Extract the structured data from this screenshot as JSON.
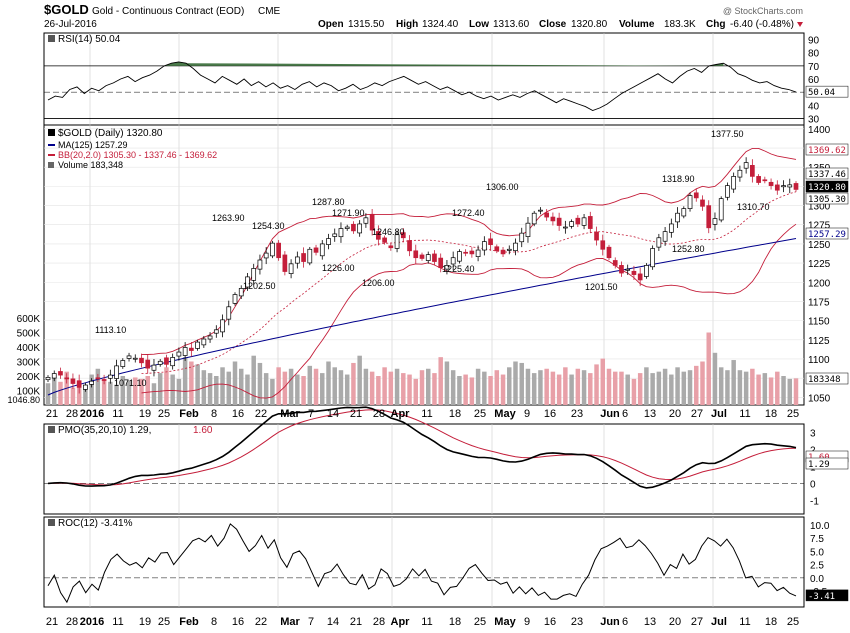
{
  "header": {
    "symbol": "$GOLD",
    "name": "Gold - Continuous Contract (EOD)",
    "exchange": "CME",
    "date": "26-Jul-2016",
    "copyright": "@ StockCharts.com",
    "quote": {
      "open_label": "Open",
      "open": "1315.50",
      "high_label": "High",
      "high": "1324.40",
      "low_label": "Low",
      "low": "1313.60",
      "close_label": "Close",
      "close": "1320.80",
      "volume_label": "Volume",
      "volume": "183.3K",
      "chg_label": "Chg",
      "chg": "-6.40 (-0.48%)"
    }
  },
  "colors": {
    "price": "#000000",
    "ma": "#00008b",
    "bb": "#c41e3a",
    "volume_up": "#aaaaaa",
    "volume_down": "#e8a0a8",
    "candle_down": "#c41e3a",
    "rsi_fill": "#4a7a4a"
  },
  "legends": {
    "rsi": "RSI(14) 50.04",
    "price_title": "$GOLD (Daily) 1320.80",
    "ma": "MA(125) 1257.29",
    "bb": "BB(20,2.0) 1305.30 - 1337.46 - 1369.62",
    "volume": "Volume 183,348",
    "pmo_prefix": "PMO(35,20,10) 1.29,",
    "pmo_signal": "1.60",
    "roc": "ROC(12) -3.41%"
  },
  "x_axis": {
    "labels": [
      {
        "text": "21",
        "bold": false
      },
      {
        "text": "28",
        "bold": false
      },
      {
        "text": "2016",
        "bold": true
      },
      {
        "text": "11",
        "bold": false
      },
      {
        "text": "19",
        "bold": false
      },
      {
        "text": "25",
        "bold": false
      },
      {
        "text": "Feb",
        "bold": true
      },
      {
        "text": "8",
        "bold": false
      },
      {
        "text": "16",
        "bold": false
      },
      {
        "text": "22",
        "bold": false
      },
      {
        "text": "Mar",
        "bold": true
      },
      {
        "text": "7",
        "bold": false
      },
      {
        "text": "14",
        "bold": false
      },
      {
        "text": "21",
        "bold": false
      },
      {
        "text": "28",
        "bold": false
      },
      {
        "text": "Apr",
        "bold": true
      },
      {
        "text": "11",
        "bold": false
      },
      {
        "text": "18",
        "bold": false
      },
      {
        "text": "25",
        "bold": false
      },
      {
        "text": "May",
        "bold": true
      },
      {
        "text": "9",
        "bold": false
      },
      {
        "text": "16",
        "bold": false
      },
      {
        "text": "23",
        "bold": false
      },
      {
        "text": "Jun",
        "bold": true
      },
      {
        "text": "6",
        "bold": false
      },
      {
        "text": "13",
        "bold": false
      },
      {
        "text": "20",
        "bold": false
      },
      {
        "text": "27",
        "bold": false
      },
      {
        "text": "Jul",
        "bold": true
      },
      {
        "text": "11",
        "bold": false
      },
      {
        "text": "18",
        "bold": false
      },
      {
        "text": "25",
        "bold": false
      }
    ]
  },
  "chart_data": [
    {
      "type": "line",
      "name": "RSI(14)",
      "ylim": [
        25,
        95
      ],
      "yticks": [
        "90",
        "80",
        "70",
        "60",
        "50",
        "40",
        "30"
      ],
      "reference_lines": [
        70,
        30
      ],
      "last_value_label": "50.04",
      "values": [
        44,
        47,
        46,
        52,
        54,
        49,
        53,
        51,
        55,
        57,
        60,
        62,
        58,
        61,
        63,
        66,
        70,
        72,
        73,
        72,
        68,
        63,
        60,
        57,
        62,
        59,
        56,
        60,
        55,
        58,
        54,
        57,
        53,
        55,
        52,
        56,
        58,
        54,
        57,
        55,
        51,
        53,
        56,
        52,
        54,
        57,
        55,
        58,
        60,
        62,
        59,
        56,
        58,
        55,
        52,
        54,
        51,
        48,
        50,
        47,
        45,
        47,
        44,
        46,
        48,
        46,
        49,
        51,
        48,
        45,
        42,
        45,
        43,
        41,
        39,
        36,
        38,
        41,
        45,
        49,
        52,
        55,
        58,
        61,
        64,
        60,
        57,
        62,
        66,
        68,
        65,
        70,
        71,
        72,
        69,
        64,
        62,
        59,
        57,
        58,
        55,
        53,
        52,
        50
      ]
    },
    {
      "type": "candlestick",
      "name": "$GOLD (Daily)",
      "ylim": [
        1040,
        1405
      ],
      "yticks": [
        "1400",
        "1375",
        "1350",
        "1325",
        "1300",
        "1275",
        "1250",
        "1225",
        "1200",
        "1175",
        "1150",
        "1125",
        "1100",
        "1075",
        "1050"
      ],
      "last_labels": {
        "bb_upper": "1369.62",
        "bb_mid": "1337.46",
        "close": "1320.80",
        "bb_lower": "1305.30",
        "ma": "1257.29"
      },
      "annotations": [
        "1377.50",
        "1318.90",
        "1306.00",
        "1287.80",
        "1271.90",
        "1272.40",
        "1263.90",
        "1254.30",
        "1246.80",
        "1202.50",
        "1226.00",
        "1225.40",
        "1206.00",
        "1201.50",
        "1252.80",
        "1310.70",
        "1113.10",
        "1071.10",
        "1046.80"
      ],
      "close": [
        1076,
        1081,
        1079,
        1074,
        1068,
        1063,
        1066,
        1071,
        1075,
        1073,
        1079,
        1091,
        1098,
        1104,
        1101,
        1095,
        1088,
        1092,
        1097,
        1093,
        1102,
        1109,
        1115,
        1111,
        1122,
        1126,
        1130,
        1138,
        1151,
        1168,
        1184,
        1192,
        1207,
        1218,
        1229,
        1238,
        1251,
        1232,
        1214,
        1224,
        1233,
        1227,
        1243,
        1239,
        1250,
        1257,
        1263,
        1270,
        1272,
        1267,
        1276,
        1284,
        1268,
        1256,
        1252,
        1245,
        1262,
        1258,
        1241,
        1232,
        1231,
        1236,
        1227,
        1219,
        1222,
        1232,
        1240,
        1238,
        1237,
        1242,
        1253,
        1249,
        1241,
        1237,
        1243,
        1251,
        1264,
        1277,
        1290,
        1294,
        1285,
        1280,
        1274,
        1272,
        1279,
        1276,
        1284,
        1270,
        1255,
        1243,
        1232,
        1222,
        1212,
        1217,
        1210,
        1203,
        1222,
        1244,
        1258,
        1266,
        1276,
        1290,
        1296,
        1313,
        1310,
        1299,
        1271,
        1283,
        1309,
        1326,
        1338,
        1346,
        1356,
        1338,
        1330,
        1333,
        1326,
        1320,
        1326,
        1327,
        1321
      ],
      "volume": [
        150000,
        190000,
        160000,
        230000,
        120000,
        170000,
        140000,
        210000,
        250000,
        180000,
        160000,
        140000,
        200000,
        170000,
        190000,
        180000,
        200000,
        150000,
        220000,
        260000,
        210000,
        180000,
        330000,
        300000,
        280000,
        240000,
        220000,
        200000,
        260000,
        230000,
        300000,
        250000,
        210000,
        340000,
        290000,
        220000,
        180000,
        260000,
        230000,
        250000,
        210000,
        200000,
        270000,
        250000,
        220000,
        300000,
        260000,
        240000,
        210000,
        290000,
        340000,
        250000,
        230000,
        200000,
        260000,
        230000,
        250000,
        220000,
        210000,
        180000,
        240000,
        250000,
        220000,
        330000,
        300000,
        240000,
        200000,
        210000,
        190000,
        250000,
        230000,
        200000,
        240000,
        210000,
        260000,
        300000,
        290000,
        250000,
        220000,
        240000,
        250000,
        230000,
        210000,
        260000,
        210000,
        250000,
        240000,
        220000,
        280000,
        320000,
        250000,
        230000,
        230000,
        210000,
        180000,
        220000,
        260000,
        220000,
        230000,
        250000,
        210000,
        260000,
        230000,
        240000,
        270000,
        300000,
        500000,
        360000,
        260000,
        240000,
        310000,
        240000,
        230000,
        250000,
        210000,
        220000,
        190000,
        230000,
        200000,
        180000,
        183348
      ],
      "volume_yticks": [
        "600K",
        "500K",
        "400K",
        "300K",
        "200K",
        "100K"
      ]
    },
    {
      "type": "line",
      "name": "PMO(35,20,10)",
      "ylim": [
        -1.8,
        3.5
      ],
      "yticks": [
        "3",
        "2",
        "1",
        "0",
        "-1"
      ],
      "last_labels": [
        "1.60",
        "1.29"
      ]
    },
    {
      "type": "line",
      "name": "ROC(12)",
      "ylim": [
        -5.5,
        11.5
      ],
      "yticks": [
        "10.0",
        "7.5",
        "5.0",
        "2.5",
        "0.0",
        "-2.5"
      ],
      "last_value_label": "-3.41",
      "values": [
        -1.5,
        0.5,
        -2.8,
        -4.6,
        -1.7,
        -0.6,
        -2.8,
        -1.2,
        -2.3,
        1.1,
        3.5,
        4.5,
        3.2,
        2.4,
        2.9,
        1.9,
        3.8,
        3.0,
        4.7,
        4.8,
        2.5,
        4.0,
        5.5,
        7.0,
        7.5,
        6.8,
        8.0,
        6.0,
        7.5,
        10.2,
        9.2,
        7.0,
        5.0,
        6.1,
        8.0,
        5.6,
        7.2,
        3.8,
        2.0,
        4.6,
        5.1,
        3.6,
        1.0,
        -1.6,
        0.8,
        1.2,
        2.6,
        0.6,
        -1.0,
        -1.3,
        0.6,
        -2.1,
        -1.3,
        1.7,
        0.8,
        -1.6,
        -1.2,
        -0.2,
        1.7,
        0.4,
        1.6,
        -0.6,
        -1.0,
        -3.2,
        -1.8,
        -1.6,
        0.0,
        1.8,
        2.5,
        0.9,
        -0.5,
        -0.4,
        -1.2,
        -0.8,
        -2.9,
        -1.7,
        -3.0,
        -1.9,
        -3.3,
        -2.7,
        -4.0,
        -4.0,
        -3.3,
        -3.0,
        -3.5,
        -1.2,
        0.5,
        3.4,
        5.5,
        6.0,
        6.7,
        7.5,
        5.7,
        6.0,
        7.2,
        6.1,
        4.6,
        2.8,
        0.5,
        2.5,
        1.8,
        4.5,
        2.6,
        3.5,
        6.0,
        7.6,
        7.0,
        6.0,
        7.3,
        5.7,
        3.2,
        0.0,
        0.3,
        -1.7,
        -0.9,
        -1.0,
        -2.4,
        -1.8,
        -2.9,
        -3.41
      ]
    }
  ]
}
